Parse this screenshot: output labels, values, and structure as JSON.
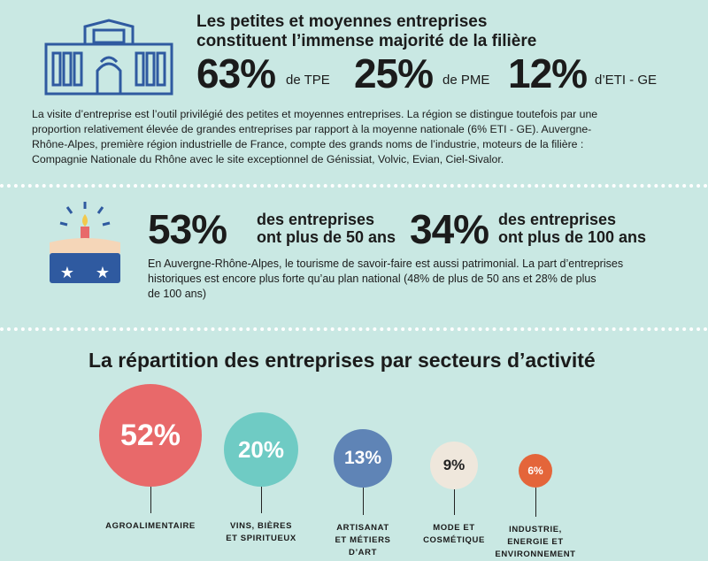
{
  "section1": {
    "title_line1": "Les petites et moyennes entreprises",
    "title_line2": "constituent l’immense majorité de la filière",
    "stats": [
      {
        "value": "63%",
        "label": "de TPE"
      },
      {
        "value": "25%",
        "label": "de PME"
      },
      {
        "value": "12%",
        "label": "d’ETI - GE"
      }
    ],
    "paragraph": [
      "La visite d’entreprise est l’outil privilégié des petites et moyennes entreprises. La région se distingue toutefois par une",
      "proportion relativement élevée de grandes entreprises par rapport à la moyenne nationale (6% ETI - GE). Auvergne-",
      "Rhône-Alpes, première région industrielle de France, compte des grands noms de l’industrie, moteurs de la filière :",
      "Compagnie Nationale du Rhône avec le site exceptionnel de Génissiat, Volvic, Evian, Ciel-Sivalor."
    ],
    "icon": "factory-building-icon"
  },
  "section2": {
    "stats": [
      {
        "value": "53%",
        "line1": "des entreprises",
        "line2": "ont plus de 50 ans"
      },
      {
        "value": "34%",
        "line1": "des entreprises",
        "line2": "ont plus de 100 ans"
      }
    ],
    "paragraph": [
      "En Auvergne-Rhône-Alpes, le tourisme de savoir-faire est aussi patrimonial. La part d’entreprises",
      "historiques est encore plus forte qu’au plan national (48% de plus de 50 ans et 28% de plus",
      "de 100 ans)"
    ],
    "icon": "birthday-cake-icon"
  },
  "section3": {
    "title": "La répartition des entreprises par secteurs d’activité"
  },
  "colors": {
    "background": "#c9e8e3",
    "agro": "#e8696a",
    "vins": "#6fcbc4",
    "artisanat": "#5f84b6",
    "mode": "#efe7dc",
    "industrie": "#e4653a",
    "icon_blue": "#2f5aa0"
  },
  "chart_data": {
    "type": "bubble",
    "categories": [
      [
        "AGROALIMENTAIRE"
      ],
      [
        "VINS, BIÈRES",
        "ET SPIRITUEUX"
      ],
      [
        "ARTISANAT",
        "ET MÉTIERS",
        "D’ART"
      ],
      [
        "MODE ET",
        "COSMÉTIQUE"
      ],
      [
        "INDUSTRIE,",
        "ENERGIE ET",
        "ENVIRONNEMENT"
      ]
    ],
    "values": [
      52,
      20,
      13,
      9,
      6
    ],
    "value_labels": [
      "52%",
      "20%",
      "13%",
      "9%",
      "6%"
    ]
  }
}
